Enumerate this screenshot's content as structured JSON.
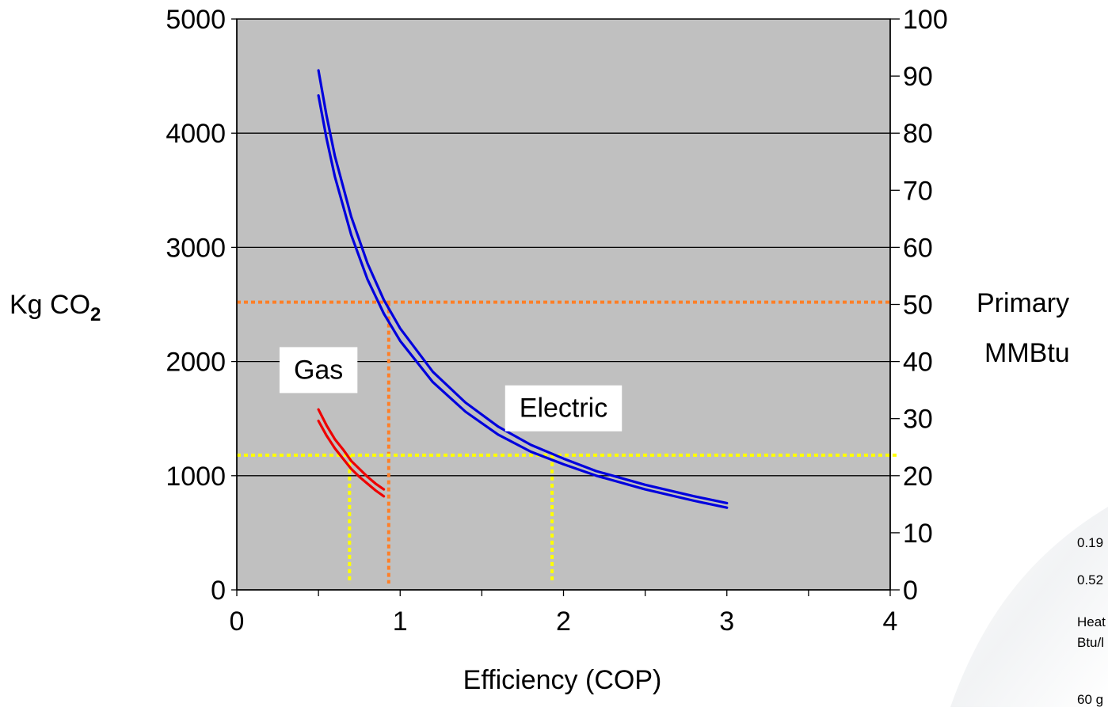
{
  "chart_data": {
    "type": "line",
    "xlabel": "Efficiency (COP)",
    "ylabel_left": "Kg CO",
    "ylabel_left_subscript": "2",
    "ylabel_right_line1": "Primary",
    "ylabel_right_line2": "MMBtu",
    "xlim": [
      0,
      4
    ],
    "ylim_left": [
      0,
      5000
    ],
    "ylim_right": [
      0,
      100
    ],
    "x_ticks": [
      "0",
      "1",
      "2",
      "3",
      "4"
    ],
    "y_ticks_left": [
      "0",
      "1000",
      "2000",
      "3000",
      "4000",
      "5000"
    ],
    "y_ticks_right": [
      "0",
      "10",
      "20",
      "30",
      "40",
      "50",
      "60",
      "70",
      "80",
      "90",
      "100"
    ],
    "grid": true,
    "plot_background": "#c0c0c0",
    "series": [
      {
        "name": "Electric",
        "color": "#0000dd",
        "lines": [
          {
            "x": [
              0.5,
              0.55,
              0.6,
              0.7,
              0.8,
              0.9,
              1.0,
              1.2,
              1.4,
              1.6,
              1.8,
              2.0,
              2.2,
              2.5,
              2.8,
              3.0
            ],
            "y": [
              4550,
              4150,
              3800,
              3270,
              2860,
              2540,
              2290,
              1910,
              1640,
              1430,
              1270,
              1150,
              1040,
              920,
              820,
              760
            ]
          },
          {
            "x": [
              0.5,
              0.55,
              0.6,
              0.7,
              0.8,
              0.9,
              1.0,
              1.2,
              1.4,
              1.6,
              1.8,
              2.0,
              2.2,
              2.5,
              2.8,
              3.0
            ],
            "y": [
              4330,
              3950,
              3620,
              3110,
              2720,
              2420,
              2180,
              1820,
              1560,
              1360,
              1210,
              1100,
              1000,
              880,
              780,
              720
            ]
          }
        ]
      },
      {
        "name": "Gas",
        "color": "#ee0000",
        "lines": [
          {
            "x": [
              0.5,
              0.55,
              0.6,
              0.65,
              0.7,
              0.75,
              0.8,
              0.85,
              0.9
            ],
            "y": [
              1580,
              1440,
              1320,
              1230,
              1130,
              1060,
              990,
              930,
              880
            ]
          },
          {
            "x": [
              0.5,
              0.55,
              0.6,
              0.65,
              0.7,
              0.75,
              0.8,
              0.85,
              0.9
            ],
            "y": [
              1480,
              1350,
              1240,
              1150,
              1060,
              990,
              930,
              870,
              820
            ]
          }
        ]
      }
    ],
    "reference_lines": [
      {
        "color": "#ff7f27",
        "y": 2520,
        "x_drop": 0.93,
        "x_end": 4.0
      },
      {
        "color": "#ffff00",
        "y": 1180,
        "x_drop_1": 0.69,
        "x_drop_2": 1.93,
        "x_end": 4.05
      }
    ],
    "labels": [
      {
        "text": "Gas",
        "x": 0.5,
        "y": 1925
      },
      {
        "text": "Electric",
        "x": 2.0,
        "y": 1590
      }
    ],
    "side_notes": [
      "0.19",
      "0.52",
      "Heat",
      "Btu/l",
      "60 g"
    ]
  }
}
